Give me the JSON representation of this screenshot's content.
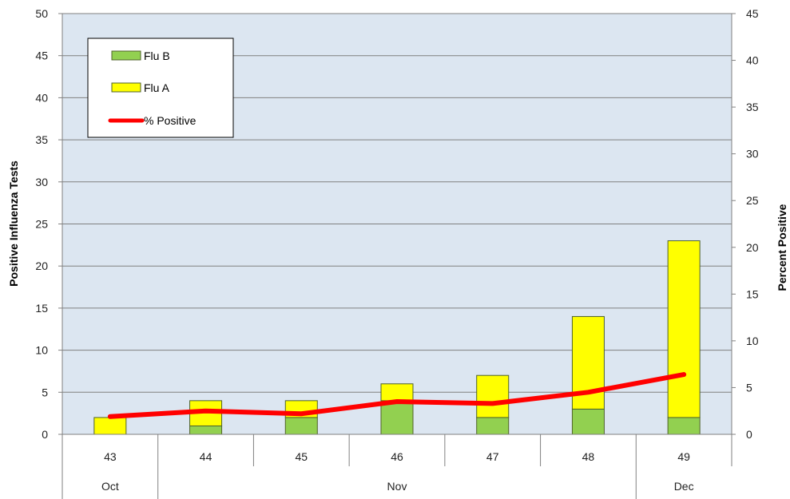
{
  "chart_data": {
    "type": "bar",
    "stacked": true,
    "categories": [
      "43",
      "44",
      "45",
      "46",
      "47",
      "48",
      "49"
    ],
    "month_labels": [
      {
        "label": "Oct",
        "weeks": [
          "43"
        ]
      },
      {
        "label": "Nov",
        "weeks": [
          "44",
          "45",
          "46",
          "47",
          "48"
        ]
      },
      {
        "label": "Dec",
        "weeks": [
          "49"
        ]
      }
    ],
    "series": [
      {
        "name": "Flu B",
        "type": "bar",
        "axis": "left",
        "color": "#92D050",
        "values": [
          0,
          1,
          2,
          4,
          2,
          3,
          2
        ]
      },
      {
        "name": "Flu A",
        "type": "bar",
        "axis": "left",
        "color": "#FFFF00",
        "values": [
          2,
          3,
          2,
          2,
          5,
          11,
          21
        ]
      },
      {
        "name": "% Positive",
        "type": "line",
        "axis": "right",
        "color": "#FF0000",
        "values": [
          1.9,
          2.5,
          2.2,
          3.5,
          3.3,
          4.5,
          6.4
        ]
      }
    ],
    "ylabel": "Positive Influenza Tests",
    "y2label": "Percent Positive",
    "ylim": [
      0,
      50
    ],
    "y2lim": [
      0,
      45
    ],
    "yticks": [
      "0",
      "5",
      "10",
      "15",
      "20",
      "25",
      "30",
      "35",
      "40",
      "45",
      "50"
    ],
    "y2ticks": [
      "0",
      "5",
      "10",
      "15",
      "20",
      "25",
      "30",
      "35",
      "40",
      "45"
    ],
    "grid": true,
    "legend_position": "top-left",
    "plot_background": "#DCE6F1",
    "gridline_color": "#808080",
    "bar_border_color": "#4F6228"
  }
}
